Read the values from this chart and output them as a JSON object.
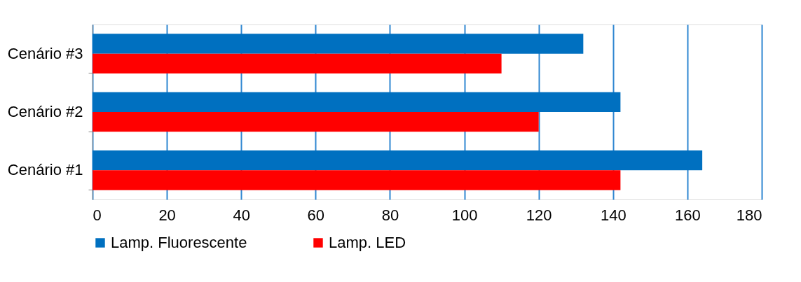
{
  "chart_data": {
    "type": "bar",
    "orientation": "horizontal",
    "categories": [
      "Cenário #3",
      "Cenário #2",
      "Cenário #1"
    ],
    "series": [
      {
        "name": "Lamp. Fluorescente",
        "color": "#0070c0",
        "values": [
          132,
          142,
          164
        ]
      },
      {
        "name": "Lamp. LED",
        "color": "#ff0000",
        "values": [
          110,
          120,
          142
        ]
      }
    ],
    "xlim": [
      0,
      180
    ],
    "xticks": [
      0,
      20,
      40,
      60,
      80,
      100,
      120,
      140,
      160,
      180
    ],
    "grid": "x",
    "legend": "bottom"
  }
}
